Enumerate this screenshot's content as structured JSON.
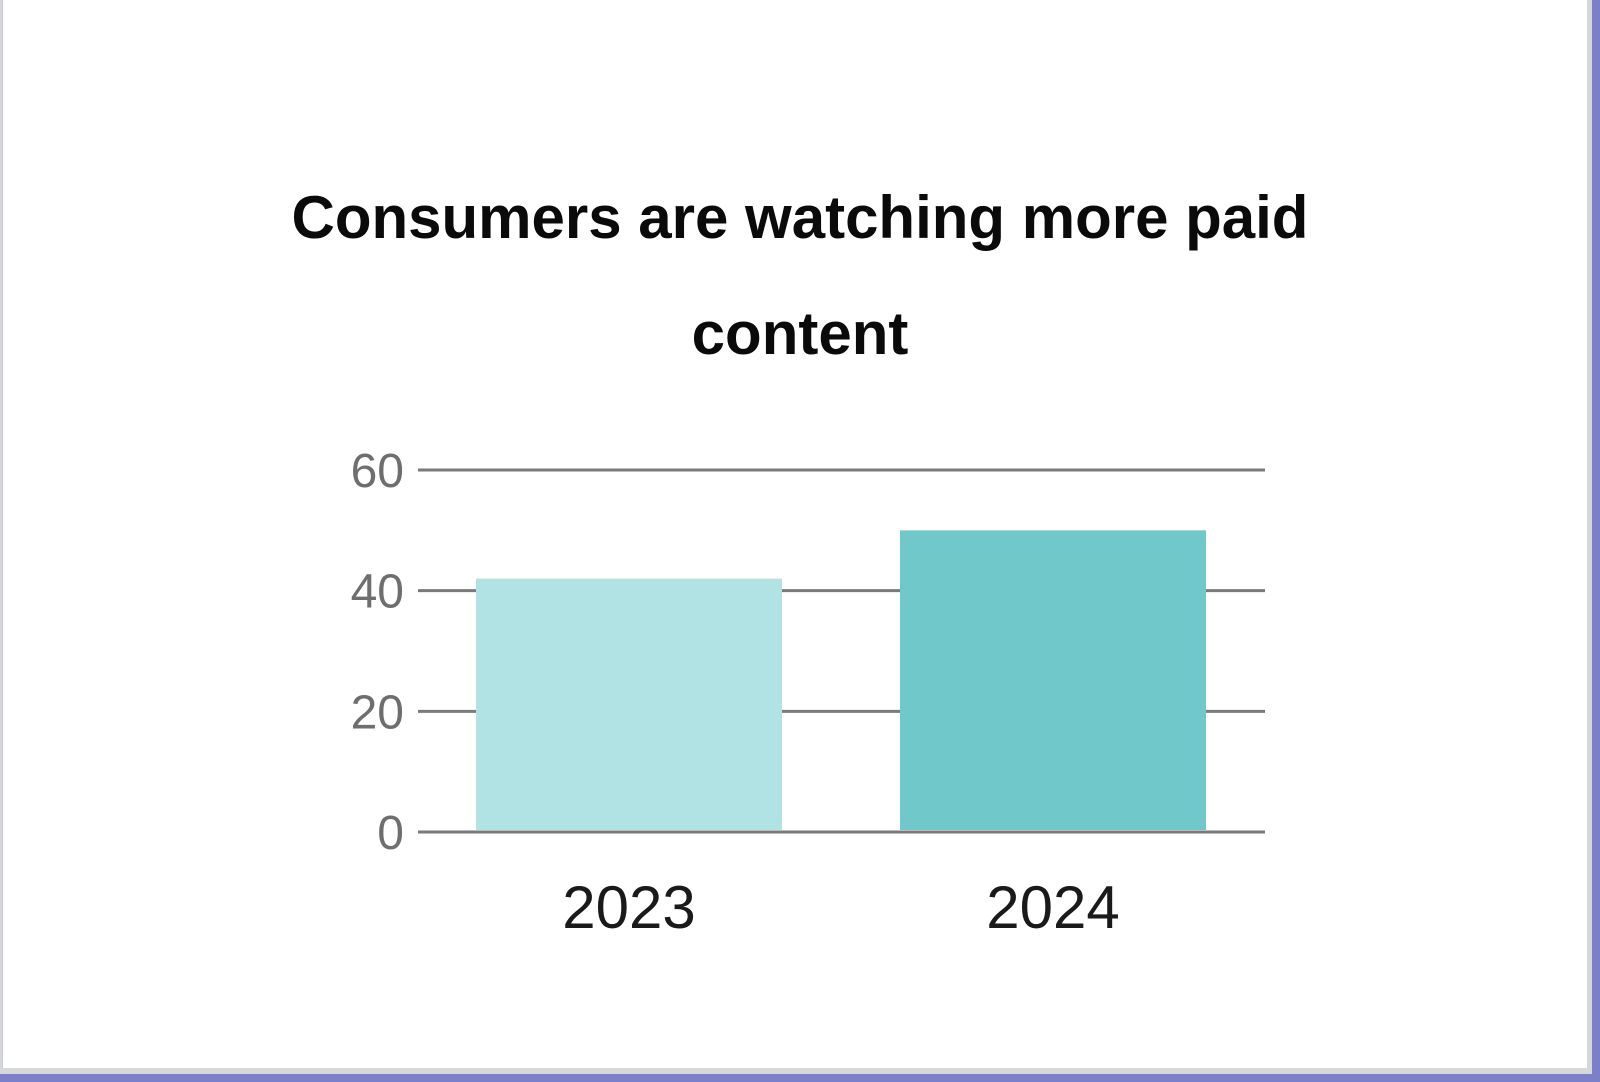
{
  "chart_data": {
    "type": "bar",
    "title": "Consumers are watching more paid content",
    "categories": [
      "2023",
      "2024"
    ],
    "values": [
      42,
      50
    ],
    "colors": [
      "#b2e3e4",
      "#71c8ca"
    ],
    "ylim": [
      0,
      60
    ],
    "yticks": [
      0,
      20,
      40,
      60
    ],
    "ytick_labels": [
      "0",
      "20",
      "40",
      "60"
    ],
    "grid": true,
    "xlabel": "",
    "ylabel": ""
  }
}
